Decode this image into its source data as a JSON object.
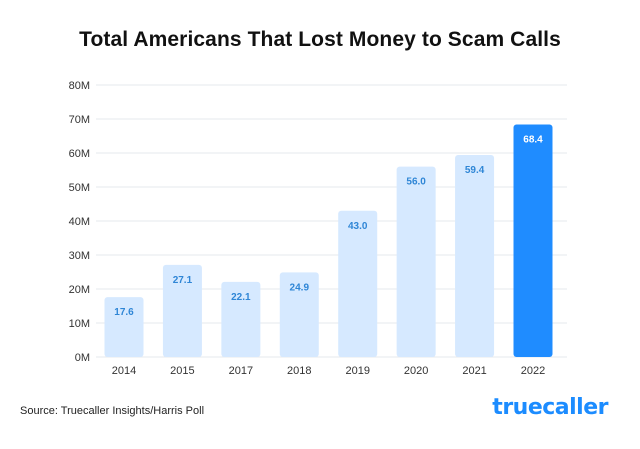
{
  "title": "Total Americans That Lost Money to Scam Calls",
  "source": "Source: Truecaller Insights/Harris Poll",
  "logo_text": "truecaller",
  "colors": {
    "bar_light": "#d6e9ff",
    "bar_highlight": "#1f8cff",
    "label_light": "#2f86d6",
    "label_highlight": "#ffffff",
    "grid": "#e6e9ee",
    "axis_text": "#333333"
  },
  "chart_data": {
    "type": "bar",
    "categories": [
      "2014",
      "2015",
      "2017",
      "2018",
      "2019",
      "2020",
      "2021",
      "2022"
    ],
    "values": [
      17.6,
      27.1,
      22.1,
      24.9,
      43.0,
      56.0,
      59.4,
      68.4
    ],
    "value_labels": [
      "17.6",
      "27.1",
      "22.1",
      "24.9",
      "43.0",
      "56.0",
      "59.4",
      "68.4"
    ],
    "highlight_index": 7,
    "yticks": [
      "0M",
      "10M",
      "20M",
      "30M",
      "40M",
      "50M",
      "60M",
      "70M",
      "80M"
    ],
    "ylim": [
      0,
      80
    ],
    "grid": true,
    "title": "Total Americans That Lost Money to Scam Calls",
    "xlabel": "",
    "ylabel": ""
  }
}
